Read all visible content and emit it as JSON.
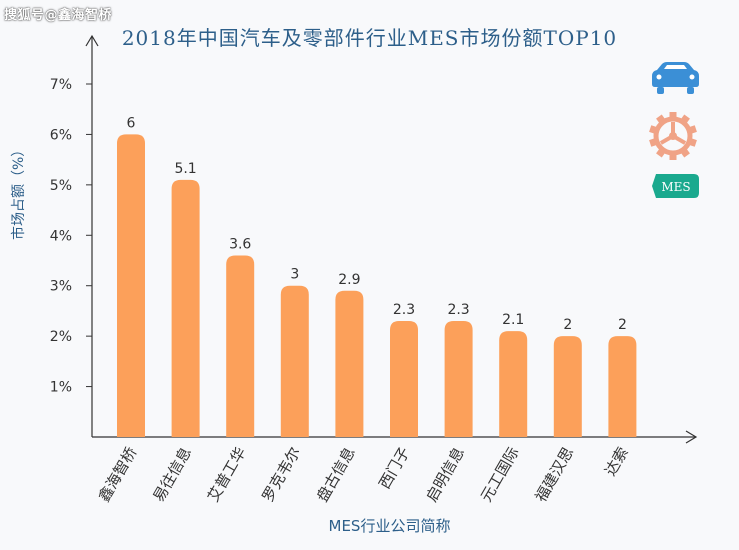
{
  "watermark": "搜狐号@鑫海智桥",
  "chart_data": {
    "type": "bar",
    "title": "2018年中国汽车及零部件行业MES市场份额TOP10",
    "xlabel": "MES行业公司简称",
    "ylabel": "市场占额（%）",
    "categories": [
      "鑫海智桥",
      "易往信息",
      "艾普工华",
      "罗克韦尔",
      "盘古信息",
      "西门子",
      "启明信息",
      "元工国际",
      "福建汉思",
      "达索"
    ],
    "values": [
      6,
      5.1,
      3.6,
      3,
      2.9,
      2.3,
      2.3,
      2.1,
      2,
      2
    ],
    "data_labels": [
      "6",
      "5.1",
      "3.6",
      "3",
      "2.9",
      "2.3",
      "2.3",
      "2.1",
      "2",
      "2"
    ],
    "yticks": [
      "1%",
      "2%",
      "3%",
      "4%",
      "5%",
      "6%",
      "7%"
    ],
    "ylim": [
      0,
      7.6
    ],
    "bar_color": "#fca05a",
    "axis_color": "#333333",
    "grid": false,
    "legend": "none"
  },
  "icons": {
    "car": {
      "name": "car-icon",
      "color": "#3b8fd6"
    },
    "gear": {
      "name": "gear-icon",
      "color": "#f0a386"
    },
    "mes": {
      "name": "mes-badge-icon",
      "label": "MES",
      "color": "#1aa98e"
    }
  }
}
